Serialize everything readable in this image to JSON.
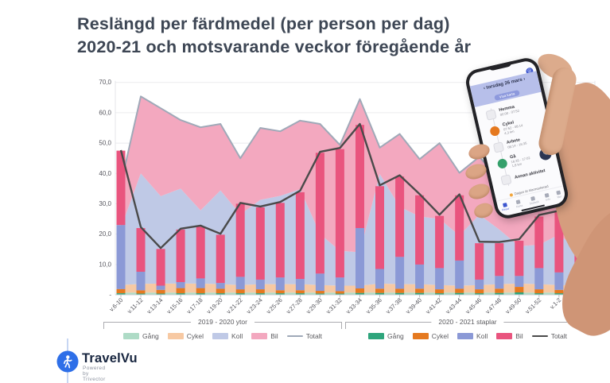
{
  "title": {
    "line1": "Reslängd per färdmedel (per person per dag)",
    "line2": "2020-21 och motsvarande veckor föregående år"
  },
  "chart_data": {
    "type": "combo: stacked-area (2019-2020) + stacked-bar (2020-2021) + total lines",
    "title": "Reslängd per färdmedel (per person per dag) 2020-21 och motsvarande veckor föregående år",
    "ylim": [
      0,
      70
    ],
    "grid": true,
    "y_ticks": [
      {
        "value": 70,
        "label": "70,0"
      },
      {
        "value": 60,
        "label": "60,0"
      },
      {
        "value": 50,
        "label": "50,0"
      },
      {
        "value": 40,
        "label": "40,0"
      },
      {
        "value": 30,
        "label": "30,0"
      },
      {
        "value": 20,
        "label": "20,0"
      },
      {
        "value": 10,
        "label": "10,0"
      },
      {
        "value": 0,
        "label": "-"
      }
    ],
    "categories": [
      "v.6-10",
      "v.11-12",
      "v.13-14",
      "v.15-16",
      "v.17-18",
      "v.19-20",
      "v.21-22",
      "v.23-24",
      "v.25-26",
      "v.27-28",
      "v.29-30",
      "v.31-32",
      "v.33-34",
      "v.35-36",
      "v.37-38",
      "v.39-40",
      "v.41-42",
      "v.43-44",
      "v.45-46",
      "v.47-48",
      "v.49-50",
      "v.51-52",
      "v.1-2",
      "v.3-4"
    ],
    "area_2019_2020": {
      "label": "2019 - 2020 ytor",
      "series": [
        {
          "name": "Gång",
          "color": "#aedbc6",
          "values": [
            0.7,
            0.7,
            0.7,
            0.7,
            0.7,
            0.7,
            0.7,
            0.7,
            0.7,
            0.7,
            0.7,
            0.7,
            0.7,
            0.7,
            0.7,
            0.7,
            0.7,
            0.7,
            0.7,
            0.7,
            0.7,
            0.7,
            0.7,
            0.7
          ]
        },
        {
          "name": "Cykel",
          "color": "#f7c9a3",
          "values": [
            2.5,
            2.9,
            3.0,
            3.0,
            3.0,
            2.8,
            2.5,
            2.8,
            2.8,
            2.8,
            2.5,
            2.3,
            2.3,
            3.0,
            2.8,
            2.8,
            2.5,
            2.3,
            2.5,
            2.8,
            3.0,
            2.8,
            2.5,
            2.3
          ]
        },
        {
          "name": "Koll",
          "color": "#bfc9e6",
          "values": [
            18.8,
            36.4,
            28.8,
            31.3,
            24.1,
            30.9,
            23.3,
            27.8,
            29.1,
            31.3,
            16.8,
            11.5,
            11.0,
            36.1,
            25.5,
            22.3,
            21.8,
            16.5,
            23.2,
            18.0,
            12.3,
            13.0,
            16.6,
            11.8
          ]
        },
        {
          "name": "Bil",
          "color": "#f3a8bf",
          "values": [
            14.5,
            25.4,
            29.0,
            22.6,
            27.4,
            21.9,
            18.5,
            23.7,
            21.3,
            22.6,
            36.3,
            34.9,
            50.5,
            8.7,
            24.0,
            18.9,
            25.0,
            20.7,
            19.1,
            16.5,
            17.5,
            17.0,
            14.2,
            17.5
          ]
        }
      ],
      "total_line": {
        "name": "Totalt",
        "color": "#9fa9b8",
        "values": [
          36.5,
          65.4,
          61.5,
          57.6,
          55.2,
          56.3,
          45.0,
          55.0,
          53.9,
          57.4,
          56.3,
          49.4,
          64.5,
          48.5,
          53.0,
          44.7,
          50.0,
          40.2,
          45.5,
          38.0,
          33.5,
          33.5,
          34.0,
          32.3
        ]
      }
    },
    "bars_2020_2021": {
      "label": "2020 - 2021 staplar",
      "series": [
        {
          "name": "Gång",
          "color": "#2fa57c",
          "values": [
            0.5,
            0.4,
            0.4,
            0.5,
            0.5,
            0.5,
            0.5,
            0.5,
            0.5,
            0.5,
            0.4,
            0.4,
            0.6,
            0.6,
            0.6,
            0.6,
            0.5,
            0.6,
            0.5,
            0.6,
            0.8,
            0.5,
            0.5,
            0.5
          ]
        },
        {
          "name": "Cykel",
          "color": "#e5791f",
          "values": [
            1.4,
            1.1,
            1.2,
            1.7,
            1.7,
            1.5,
            1.3,
            1.3,
            1.0,
            1.0,
            0.9,
            0.8,
            1.5,
            1.4,
            1.4,
            1.4,
            1.3,
            1.4,
            1.3,
            1.4,
            1.8,
            1.3,
            1.1,
            1.0
          ]
        },
        {
          "name": "Koll",
          "color": "#8b99d6",
          "values": [
            21.1,
            6.1,
            1.4,
            2.0,
            3.2,
            1.9,
            4.1,
            3.2,
            4.2,
            3.7,
            5.7,
            4.5,
            19.9,
            6.5,
            10.5,
            8.0,
            7.0,
            9.3,
            3.2,
            4.2,
            3.6,
            7.0,
            5.8,
            2.0
          ]
        },
        {
          "name": "Bil",
          "color": "#e9547e",
          "values": [
            24.5,
            14.4,
            12.1,
            17.3,
            17.1,
            15.9,
            24.1,
            23.8,
            24.6,
            28.6,
            39.8,
            42.3,
            34.0,
            27.3,
            26.5,
            22.8,
            17.2,
            21.5,
            12.0,
            10.8,
            11.6,
            17.0,
            20.0,
            11.1
          ]
        }
      ],
      "total_line": {
        "name": "Totalt",
        "color": "#4a4a4a",
        "values": [
          47.7,
          22.3,
          15.4,
          21.8,
          22.8,
          20.1,
          30.3,
          29.1,
          30.6,
          34.3,
          47.1,
          48.4,
          56.3,
          36.1,
          39.4,
          33.2,
          26.4,
          33.1,
          17.5,
          17.4,
          18.3,
          26.3,
          27.7,
          14.9
        ]
      }
    }
  },
  "legends": [
    {
      "group": "2019 - 2020 ytor",
      "items": [
        {
          "label": "Gång",
          "color": "#aedbc6",
          "type": "swatch"
        },
        {
          "label": "Cykel",
          "color": "#f7c9a3",
          "type": "swatch"
        },
        {
          "label": "Koll",
          "color": "#bfc9e6",
          "type": "swatch"
        },
        {
          "label": "Bil",
          "color": "#f3a8bf",
          "type": "swatch"
        },
        {
          "label": "Totalt",
          "color": "#9fa9b8",
          "type": "line"
        }
      ]
    },
    {
      "group": "2020 - 2021 staplar",
      "items": [
        {
          "label": "Gång",
          "color": "#2fa57c",
          "type": "swatch"
        },
        {
          "label": "Cykel",
          "color": "#e5791f",
          "type": "swatch"
        },
        {
          "label": "Koll",
          "color": "#8b99d6",
          "type": "swatch"
        },
        {
          "label": "Bil",
          "color": "#e9547e",
          "type": "swatch"
        },
        {
          "label": "Totalt",
          "color": "#4a4a4a",
          "type": "line"
        }
      ]
    }
  ],
  "logo": {
    "name": "TravelVu",
    "tagline": "Powered by Trivector",
    "accent": "#2e6fe8"
  },
  "phone": {
    "header_date": "‹  torsdag 26 mars  ›",
    "header_button": "Visa karta",
    "rows": [
      {
        "icon": "home-icon",
        "style": "sq",
        "color": "#ececf0",
        "title": "Hemma",
        "sub": "00:00 - 07:52"
      },
      {
        "icon": "bike-icon",
        "style": "circ",
        "color": "#e5791f",
        "title": "Cykel",
        "sub": "07:52 - 08:14\n4,3 km"
      },
      {
        "icon": "work-icon",
        "style": "sq",
        "color": "#ececf0",
        "title": "Arbete",
        "sub": "08:14 - 16:35"
      },
      {
        "icon": "walk-icon",
        "style": "circ",
        "color": "#35a06b",
        "title": "Gå",
        "sub": "16:35 - 17:02\n1,8 km"
      },
      {
        "icon": "activity-icon",
        "style": "sq",
        "color": "#ececf0",
        "title": "Annan aktivitet",
        "sub": ""
      }
    ],
    "fab_glyph": "✎",
    "banner": "Dagen är klarmarkerad",
    "tabs": [
      "Resor",
      "Karta",
      "Statistik",
      "Info",
      "Mer"
    ]
  }
}
